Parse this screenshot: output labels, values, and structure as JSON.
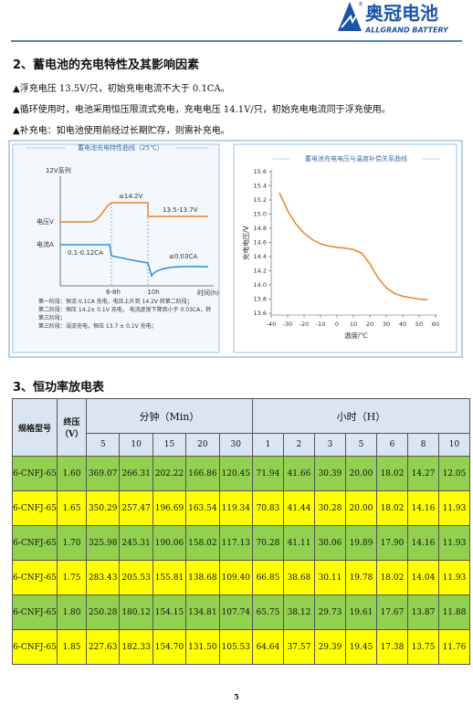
{
  "header": {
    "brand": "奥冠电池",
    "brand_en": "ALLGRAND BATTERY",
    "mark": "®"
  },
  "section2": {
    "title": "2、蓄电池的充电特性及其影响因素",
    "items": [
      "▲浮充电压 13.5V/只，初始充电电流不大于 0.1CA。",
      "▲循环使用时，电池采用恒压限流式充电，充电电压 14.1V/只，初始充电电流同于浮充使用。",
      "▲补充电：如电池使用前经过长期贮存，则需补充电。"
    ]
  },
  "schematic": {
    "title": "蓄电池充电特性曲线（25℃）",
    "series_label": "12V系列",
    "voltage_label": "电压V",
    "current_label": "电流A",
    "v_boost": "≤14.2V",
    "v_float": "13.5-13.7V",
    "i_initial": "0.1-0.12CA",
    "i_final": "≤0.03CA",
    "t1": "6-8h",
    "t2": "10h",
    "time_label": "时间(h)",
    "notes": [
      "第一阶段：恒流 0.1CA 充电，电压上升到 14.2V 转第二阶段；",
      "第二阶段：恒压 14.2± 0.1V 充电，  电流逐渐下降到小于 0.03CA，转第三阶段；",
      "第三阶段：涓流充电，恒压 13.7 ± 0.1V 充电；"
    ]
  },
  "chart_data": {
    "type": "line",
    "title": "蓄电池充电电压与温度补偿关系曲线",
    "x_label": "温度/℃",
    "y_label": "充电电压/V",
    "x": [
      -35,
      -30,
      -25,
      -20,
      -15,
      -10,
      -5,
      0,
      5,
      10,
      15,
      20,
      25,
      30,
      35,
      40,
      45,
      50,
      55
    ],
    "values": [
      15.3,
      15.05,
      14.86,
      14.73,
      14.64,
      14.58,
      14.55,
      14.53,
      14.52,
      14.5,
      14.45,
      14.3,
      14.1,
      13.96,
      13.88,
      13.84,
      13.82,
      13.8,
      13.79
    ],
    "color": "#e8822a",
    "xlim": [
      -40,
      60
    ],
    "ylim": [
      13.6,
      15.6
    ],
    "xticks": [
      -40,
      -30,
      -20,
      -10,
      0,
      10,
      20,
      30,
      40,
      50,
      60
    ],
    "yticks": [
      13.6,
      13.8,
      {
        "value": 14,
        "label": "14.0"
      },
      14.2,
      14.4,
      14.6,
      14.8,
      {
        "value": 15,
        "label": "15.0"
      },
      15.2,
      15.4,
      15.6
    ]
  },
  "section3": {
    "title": "3、恒功率放电表"
  },
  "table": {
    "header": {
      "model": "规格型号",
      "end_voltage": [
        "终压",
        "（V）"
      ],
      "groups": [
        {
          "label": "分钟（Min）",
          "columns": [
            "5",
            "10",
            "15",
            "20",
            "30"
          ]
        },
        {
          "label": "小时（H）",
          "columns": [
            "1",
            "2",
            "3",
            "5",
            "6",
            "8",
            "10"
          ]
        }
      ]
    },
    "rows": [
      {
        "model": "6-CNFJ-65",
        "end_voltage": "1.60",
        "values": [
          "369.07",
          "266.31",
          "202.22",
          "166.86",
          "120.45",
          "71.94",
          "41.66",
          "30.39",
          "20.00",
          "18.02",
          "14.27",
          "12.05"
        ]
      },
      {
        "model": "6-CNFJ-65",
        "end_voltage": "1.65",
        "values": [
          "350.29",
          "257.47",
          "196.69",
          "163.54",
          "119.34",
          "70.83",
          "41.44",
          "30.28",
          "20.00",
          "18.02",
          "14.16",
          "11.93"
        ]
      },
      {
        "model": "6-CNFJ-65",
        "end_voltage": "1.70",
        "values": [
          "325.98",
          "245.31",
          "190.06",
          "158.02",
          "117.13",
          "70.28",
          "41.11",
          "30.06",
          "19.89",
          "17.90",
          "14.16",
          "11.93"
        ]
      },
      {
        "model": "6-CNFJ-65",
        "end_voltage": "1.75",
        "values": [
          "283.43",
          "205.53",
          "155.81",
          "138.68",
          "109.40",
          "66.85",
          "38.68",
          "30.11",
          "19.78",
          "18.02",
          "14.04",
          "11.93"
        ]
      },
      {
        "model": "6-CNFJ-65",
        "end_voltage": "1.80",
        "values": [
          "250.28",
          "180.12",
          "154.15",
          "134.81",
          "107.74",
          "65.75",
          "38.12",
          "29.73",
          "19.61",
          "17.67",
          "13.87",
          "11.88"
        ]
      },
      {
        "model": "6-CNFJ-65",
        "end_voltage": "1.85",
        "values": [
          "227.63",
          "182.33",
          "154.70",
          "131.50",
          "105.53",
          "64.64",
          "37.57",
          "29.39",
          "19.45",
          "17.38",
          "13.75",
          "11.76"
        ]
      }
    ]
  },
  "page_number": "5"
}
